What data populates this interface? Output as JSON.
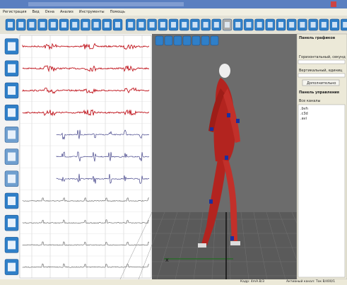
{
  "menu": [
    "Регистрация",
    "Вид",
    "Окна",
    "Анализ",
    "Инструменты",
    "Помощь"
  ],
  "right_panel": {
    "graphs_title": "Панель графиков",
    "horizontal_label": "Горизонтальный, секунд",
    "vertical_label": "Вертикальный, единиц",
    "more_button": "Дополнительно",
    "control_title": "Панель управления",
    "channels_label": "Все каналы",
    "channels": [
      ".bvh",
      ".c3d",
      ".avi"
    ]
  },
  "status": [
    "Кадр: 4mA.B/3",
    "Активный канал: Ток В/400/1"
  ]
}
